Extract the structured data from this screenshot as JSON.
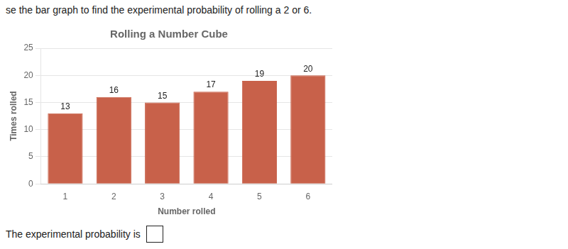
{
  "chart_data": {
    "type": "bar",
    "title": "Rolling a Number Cube",
    "xlabel": "Number rolled",
    "ylabel": "Times rolled",
    "categories": [
      1,
      2,
      3,
      4,
      5,
      6
    ],
    "values": [
      13,
      16,
      15,
      17,
      19,
      20
    ],
    "color": "#c8614a",
    "ylim": [
      0,
      25
    ],
    "yticks": [
      0,
      5,
      10,
      15,
      20,
      25
    ],
    "grid": true,
    "data_labels": true,
    "annotations": [
      "se the bar graph to find the experimental probability of rolling a 2 or 6.",
      "The experimental probability is"
    ]
  }
}
